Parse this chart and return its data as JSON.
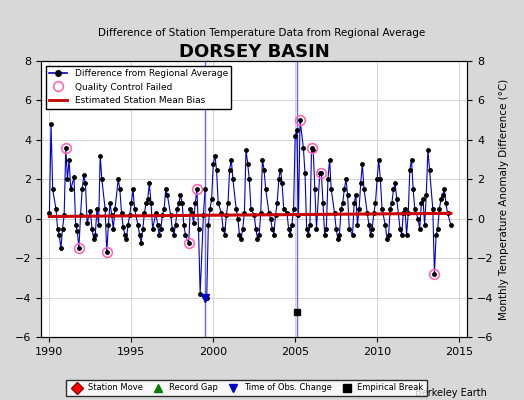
{
  "title": "DORSEY BASIN",
  "subtitle": "Difference of Station Temperature Data from Regional Average",
  "ylabel": "Monthly Temperature Anomaly Difference (°C)",
  "xlabel_bottom": "Berkeley Earth",
  "xlim": [
    1989.5,
    2015.5
  ],
  "ylim": [
    -6,
    8
  ],
  "yticks": [
    -6,
    -4,
    -2,
    0,
    2,
    4,
    6,
    8
  ],
  "xticks": [
    1990,
    1995,
    2000,
    2005,
    2010,
    2015
  ],
  "bg_color": "#e8e8e8",
  "plot_bg_color": "#ffffff",
  "bias_line_start": 1990,
  "bias_line_end": 2014.5,
  "bias_value": 0.15,
  "vertical_line_x1": 1999.5,
  "vertical_line_x2": 2005.1,
  "empirical_break_x": 2005.1,
  "empirical_break_y": -4.7,
  "time_obs_change_x": 1999.5,
  "time_obs_change_y": -6,
  "qc_failed_points": [
    [
      1991.0,
      3.6
    ],
    [
      1991.8,
      -1.5
    ],
    [
      1993.5,
      -1.7
    ],
    [
      1998.5,
      -1.2
    ],
    [
      1999.0,
      1.5
    ],
    [
      2005.3,
      5.0
    ],
    [
      2006.0,
      3.6
    ],
    [
      2006.6,
      2.3
    ],
    [
      2013.5,
      -2.8
    ]
  ],
  "main_data": {
    "x": [
      1990.0,
      1990.1,
      1990.2,
      1990.4,
      1990.5,
      1990.6,
      1990.7,
      1990.8,
      1990.9,
      1991.0,
      1991.1,
      1991.2,
      1991.3,
      1991.5,
      1991.6,
      1991.7,
      1991.8,
      1991.9,
      1992.0,
      1992.1,
      1992.2,
      1992.3,
      1992.5,
      1992.6,
      1992.7,
      1992.8,
      1992.9,
      1993.0,
      1993.1,
      1993.2,
      1993.4,
      1993.5,
      1993.6,
      1993.7,
      1993.8,
      1993.9,
      1994.0,
      1994.2,
      1994.3,
      1994.4,
      1994.5,
      1994.6,
      1994.7,
      1994.8,
      1994.9,
      1995.0,
      1995.1,
      1995.2,
      1995.4,
      1995.5,
      1995.6,
      1995.7,
      1995.8,
      1995.9,
      1996.0,
      1996.1,
      1996.2,
      1996.3,
      1996.5,
      1996.6,
      1996.7,
      1996.8,
      1996.9,
      1997.0,
      1997.1,
      1997.2,
      1997.4,
      1997.5,
      1997.6,
      1997.7,
      1997.8,
      1997.9,
      1998.0,
      1998.1,
      1998.2,
      1998.3,
      1998.5,
      1998.6,
      1998.7,
      1998.8,
      1998.9,
      1999.0,
      1999.1,
      1999.2,
      1999.4,
      1999.5,
      1999.6,
      1999.7,
      1999.8,
      1999.9,
      2000.0,
      2000.1,
      2000.2,
      2000.3,
      2000.5,
      2000.6,
      2000.7,
      2000.8,
      2000.9,
      2001.0,
      2001.1,
      2001.2,
      2001.4,
      2001.5,
      2001.6,
      2001.7,
      2001.8,
      2001.9,
      2002.0,
      2002.1,
      2002.2,
      2002.3,
      2002.5,
      2002.6,
      2002.7,
      2002.8,
      2002.9,
      2003.0,
      2003.1,
      2003.2,
      2003.4,
      2003.5,
      2003.6,
      2003.7,
      2003.8,
      2003.9,
      2004.0,
      2004.1,
      2004.2,
      2004.3,
      2004.5,
      2004.6,
      2004.7,
      2004.8,
      2004.9,
      2005.0,
      2005.1,
      2005.2,
      2005.3,
      2005.5,
      2005.6,
      2005.7,
      2005.8,
      2005.9,
      2006.0,
      2006.1,
      2006.2,
      2006.3,
      2006.5,
      2006.6,
      2006.7,
      2006.8,
      2006.9,
      2007.0,
      2007.1,
      2007.2,
      2007.4,
      2007.5,
      2007.6,
      2007.7,
      2007.8,
      2007.9,
      2008.0,
      2008.1,
      2008.2,
      2008.3,
      2008.5,
      2008.6,
      2008.7,
      2008.8,
      2008.9,
      2009.0,
      2009.1,
      2009.2,
      2009.4,
      2009.5,
      2009.6,
      2009.7,
      2009.8,
      2009.9,
      2010.0,
      2010.1,
      2010.2,
      2010.3,
      2010.5,
      2010.6,
      2010.7,
      2010.8,
      2010.9,
      2011.0,
      2011.1,
      2011.2,
      2011.4,
      2011.5,
      2011.6,
      2011.7,
      2011.8,
      2011.9,
      2012.0,
      2012.1,
      2012.2,
      2012.3,
      2012.5,
      2012.6,
      2012.7,
      2012.8,
      2012.9,
      2013.0,
      2013.1,
      2013.2,
      2013.4,
      2013.5,
      2013.6,
      2013.7,
      2013.8,
      2013.9,
      2014.0,
      2014.1,
      2014.2,
      2014.3,
      2014.5
    ],
    "y": [
      0.3,
      4.8,
      1.5,
      0.5,
      -0.5,
      -0.8,
      -1.5,
      -0.5,
      0.2,
      3.6,
      2.0,
      3.0,
      1.5,
      2.1,
      -0.3,
      -0.6,
      -1.5,
      0.2,
      1.5,
      2.2,
      1.8,
      -0.2,
      0.4,
      -0.5,
      -1.0,
      -0.8,
      0.5,
      -0.3,
      3.2,
      2.0,
      0.5,
      -1.7,
      -0.3,
      0.8,
      0.2,
      -0.5,
      0.5,
      2.0,
      1.5,
      0.3,
      -0.4,
      -0.8,
      -1.0,
      -0.3,
      0.2,
      0.8,
      1.5,
      0.5,
      -0.3,
      -0.8,
      -1.2,
      -0.5,
      0.3,
      0.8,
      1.0,
      1.8,
      0.8,
      -0.5,
      0.3,
      -0.3,
      -0.8,
      -0.5,
      0.2,
      0.5,
      1.5,
      1.2,
      0.2,
      -0.5,
      -0.8,
      -0.3,
      0.5,
      0.8,
      1.2,
      0.8,
      -0.3,
      -0.8,
      -1.2,
      0.5,
      0.3,
      -0.2,
      0.8,
      1.5,
      -0.5,
      -3.8,
      0.2,
      1.5,
      -4.0,
      -0.3,
      0.5,
      1.0,
      2.8,
      3.2,
      2.5,
      0.8,
      0.3,
      -0.5,
      -0.8,
      0.2,
      0.8,
      2.5,
      3.0,
      2.0,
      0.5,
      0.0,
      -0.8,
      -1.0,
      -0.5,
      0.3,
      3.5,
      2.8,
      2.0,
      0.5,
      0.2,
      -0.5,
      -1.0,
      -0.8,
      0.3,
      3.0,
      2.5,
      1.5,
      0.3,
      0.0,
      -0.5,
      -0.8,
      0.2,
      0.8,
      2.0,
      2.5,
      1.8,
      0.5,
      0.3,
      -0.5,
      -0.8,
      -0.3,
      0.5,
      4.2,
      4.5,
      0.2,
      5.0,
      3.6,
      2.3,
      -0.5,
      -0.8,
      -0.3,
      3.6,
      3.5,
      1.5,
      -0.5,
      2.3,
      2.3,
      0.8,
      -0.8,
      -0.5,
      2.0,
      3.0,
      1.5,
      0.3,
      -0.5,
      -1.0,
      -0.8,
      0.5,
      0.8,
      1.5,
      2.0,
      1.2,
      -0.5,
      -0.8,
      0.8,
      1.2,
      -0.3,
      0.5,
      1.8,
      2.8,
      1.5,
      0.3,
      -0.3,
      -0.8,
      -0.5,
      0.3,
      0.8,
      2.0,
      3.0,
      2.0,
      0.5,
      -0.3,
      -1.0,
      -0.8,
      0.5,
      0.8,
      1.5,
      1.8,
      1.0,
      -0.5,
      -0.8,
      0.3,
      0.5,
      -0.8,
      0.3,
      2.5,
      3.0,
      1.5,
      0.5,
      0.0,
      -0.5,
      0.8,
      1.0,
      -0.3,
      1.2,
      3.5,
      2.5,
      0.5,
      -2.8,
      -0.8,
      -0.5,
      0.5,
      1.0,
      1.2,
      1.5,
      0.8,
      0.3,
      -0.3
    ]
  },
  "line_color": "#0000cc",
  "marker_color": "#000000",
  "qc_color": "#ff69b4",
  "bias_color": "#cc0000",
  "vline_color": "#6666ff",
  "grid_color": "#cccccc"
}
